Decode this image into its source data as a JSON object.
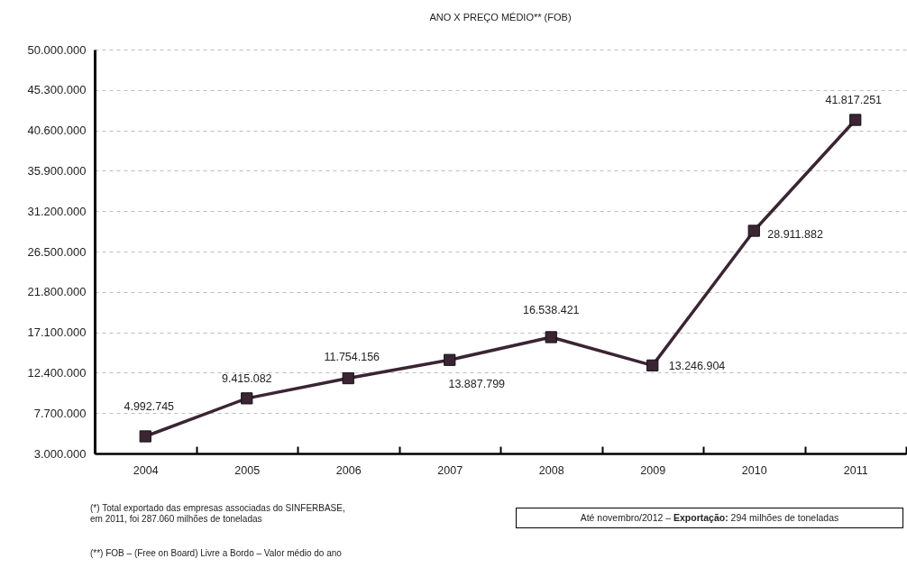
{
  "chart_data": {
    "type": "line",
    "title": "ANO X PREÇO MÉDIO** (FOB)",
    "categories": [
      "2004",
      "2005",
      "2006",
      "2007",
      "2008",
      "2009",
      "2010",
      "2011"
    ],
    "values": [
      4992745,
      9415082,
      11754156,
      13887799,
      16538421,
      13246904,
      28911882,
      41817251
    ],
    "value_labels": [
      "4.992.745",
      "9.415.082",
      "11.754.156",
      "13.887.799",
      "16.538.421",
      "13.246.904",
      "28.911.882",
      "41.817.251"
    ],
    "color": "#3b2433",
    "marker": "square",
    "line_style": "solid",
    "grid": "y",
    "ylim": [
      3000000,
      50000000
    ],
    "yticks": [
      {
        "value": 3000000,
        "label": "3.000.000"
      },
      {
        "value": 7700000,
        "label": "7.700.000"
      },
      {
        "value": 12400000,
        "label": "12.400.000"
      },
      {
        "value": 17100000,
        "label": "17.100.000"
      },
      {
        "value": 21800000,
        "label": "21.800.000"
      },
      {
        "value": 26500000,
        "label": "26.500.000"
      },
      {
        "value": 31200000,
        "label": "31.200.000"
      },
      {
        "value": 35900000,
        "label": "35.900.000"
      },
      {
        "value": 40600000,
        "label": "40.600.000"
      },
      {
        "value": 45300000,
        "label": "45.300.000"
      },
      {
        "value": 50000000,
        "label": "50.000.000"
      }
    ],
    "annotations": [
      "(*) Total exportado das empresas associadas do SINFERBASE,\nem 2011, foi 287.060 milhões de toneladas",
      "(**) FOB – (Free on Board) Livre a Bordo –  Valor médio do ano",
      "Até novembro/2012 – Exportação: 294 milhões de toneladas"
    ]
  }
}
